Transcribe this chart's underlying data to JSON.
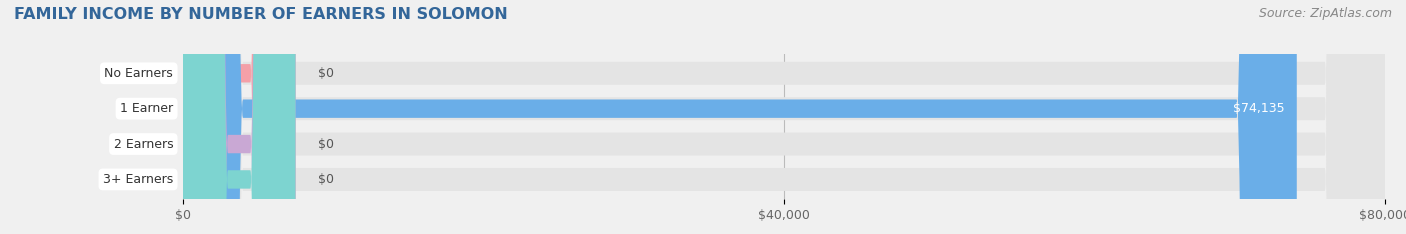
{
  "title": "FAMILY INCOME BY NUMBER OF EARNERS IN SOLOMON",
  "source": "Source: ZipAtlas.com",
  "categories": [
    "No Earners",
    "1 Earner",
    "2 Earners",
    "3+ Earners"
  ],
  "values": [
    0,
    74135,
    0,
    0
  ],
  "bar_colors": [
    "#f4a0a8",
    "#6aaee8",
    "#c9a8d4",
    "#7dd4d0"
  ],
  "background_color": "#f0f0f0",
  "bar_bg_color": "#e4e4e4",
  "xlim": [
    0,
    80000
  ],
  "xtick_labels": [
    "$0",
    "$40,000",
    "$80,000"
  ],
  "xtick_vals": [
    0,
    40000,
    80000
  ],
  "title_color": "#336699",
  "bar_label_color": "#ffffff",
  "zero_label_color": "#555555",
  "title_fontsize": 11.5,
  "source_fontsize": 9,
  "label_fontsize": 9,
  "value_fontsize": 9,
  "xtick_fontsize": 9
}
